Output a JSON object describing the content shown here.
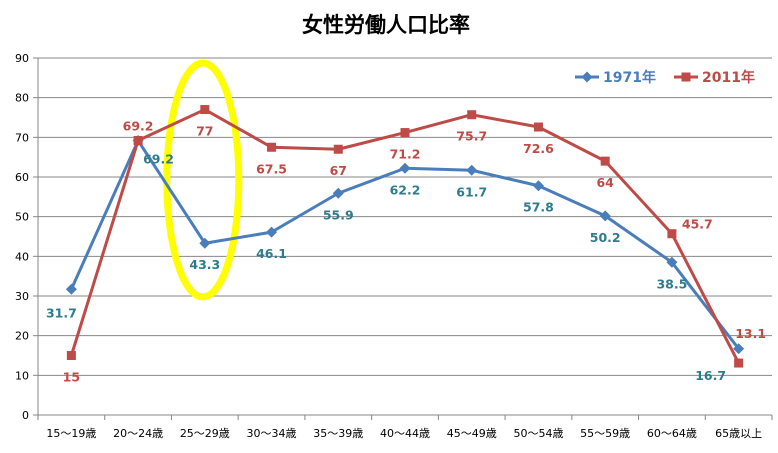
{
  "chart_data": {
    "type": "line",
    "title": "女性労働人口比率",
    "categories": [
      "15～19歳",
      "20～24歳",
      "25～29歳",
      "30～34歳",
      "35～39歳",
      "40～44歳",
      "45～49歳",
      "50～54歳",
      "55～59歳",
      "60～64歳",
      "65歳以上"
    ],
    "series": [
      {
        "name": "1971年",
        "color": "#4a7ebb",
        "marker": "diamond",
        "values": [
          31.7,
          69.2,
          43.3,
          46.1,
          55.9,
          62.2,
          61.7,
          57.8,
          50.2,
          38.5,
          16.7
        ],
        "labels": [
          "31.7",
          "69.2",
          "43.3",
          "46.1",
          "55.9",
          "62.2",
          "61.7",
          "57.8",
          "50.2",
          "38.5",
          "16.7"
        ],
        "label_color": "#2e7c8c"
      },
      {
        "name": "2011年",
        "color": "#be4b48",
        "marker": "square",
        "values": [
          15,
          69.2,
          77,
          67.5,
          67,
          71.2,
          75.7,
          72.6,
          64,
          45.7,
          13.1
        ],
        "labels": [
          "15",
          "69.2",
          "77",
          "67.5",
          "67",
          "71.2",
          "75.7",
          "72.6",
          "64",
          "45.7",
          "13.1"
        ],
        "label_color": "#be4b48"
      }
    ],
    "ylim": [
      0,
      90
    ],
    "yticks": [
      0,
      10,
      20,
      30,
      40,
      50,
      60,
      70,
      80,
      90
    ],
    "grid": true,
    "legend_position": "top-right",
    "highlight": {
      "category": "25～29歳",
      "color": "#ffff00"
    }
  }
}
